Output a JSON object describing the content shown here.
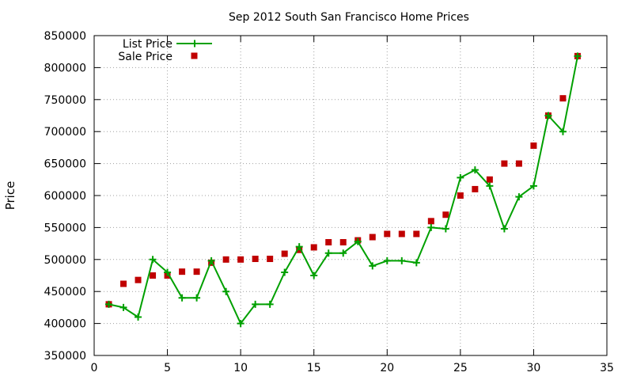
{
  "chart_data": {
    "type": "scatter",
    "title": "Sep 2012 South San Francisco Home Prices",
    "xlabel": "",
    "ylabel": "Price",
    "xlim": [
      0,
      35
    ],
    "ylim": [
      350000,
      850000
    ],
    "xticks": [
      0,
      5,
      10,
      15,
      20,
      25,
      30,
      35
    ],
    "yticks": [
      350000,
      400000,
      450000,
      500000,
      550000,
      600000,
      650000,
      700000,
      750000,
      800000,
      850000
    ],
    "grid": true,
    "legend_position": "top-left",
    "series": [
      {
        "name": "List Price",
        "style": "linespoints",
        "color": "#00a000",
        "x": [
          1,
          2,
          3,
          4,
          5,
          6,
          7,
          8,
          9,
          10,
          11,
          12,
          13,
          14,
          15,
          16,
          17,
          18,
          19,
          20,
          21,
          22,
          23,
          24,
          25,
          26,
          27,
          28,
          29,
          30,
          31,
          32,
          33
        ],
        "y": [
          430000,
          425000,
          410000,
          500000,
          480000,
          440000,
          440000,
          498000,
          450000,
          400000,
          430000,
          430000,
          480000,
          520000,
          475000,
          510000,
          510000,
          528000,
          490000,
          498000,
          498000,
          495000,
          550000,
          548000,
          628000,
          640000,
          615000,
          548000,
          598000,
          615000,
          725000,
          700000,
          818000
        ]
      },
      {
        "name": "Sale Price",
        "style": "points",
        "color": "#c00000",
        "x": [
          1,
          2,
          3,
          4,
          5,
          6,
          7,
          8,
          9,
          10,
          11,
          12,
          13,
          14,
          15,
          16,
          17,
          18,
          19,
          20,
          21,
          22,
          23,
          24,
          25,
          26,
          27,
          28,
          29,
          30,
          31,
          32,
          33
        ],
        "y": [
          430000,
          462000,
          468000,
          475000,
          475000,
          481000,
          481000,
          495000,
          500000,
          500000,
          501000,
          501000,
          509000,
          515000,
          519000,
          527000,
          527000,
          530000,
          535000,
          540000,
          540000,
          540000,
          560000,
          570000,
          600000,
          610000,
          625000,
          650000,
          650000,
          678000,
          725000,
          752000,
          818000
        ]
      }
    ]
  }
}
